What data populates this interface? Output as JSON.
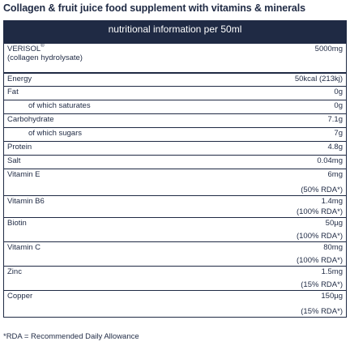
{
  "title": "Collagen & fruit juice food supplement with vitamins & minerals",
  "table": {
    "header": "nutritional information per 50ml",
    "rows": [
      {
        "label": "VERISOL",
        "label_sup": "®",
        "sublabel": "(collagen hydrolysate)",
        "value": "5000mg"
      },
      {
        "label": "Energy",
        "value": "50kcal (213kj)"
      },
      {
        "label": "Fat",
        "value": "0g"
      },
      {
        "label": "of which saturates",
        "value": "0g"
      },
      {
        "label": "Carbohydrate",
        "value": "7.1g"
      },
      {
        "label": "of which sugars",
        "value": "7g"
      },
      {
        "label": "Protein",
        "value": "4.8g"
      },
      {
        "label": "Salt",
        "value": "0.04mg"
      },
      {
        "label": "Vitamin E",
        "value": "6mg",
        "rda": "(50% RDA*)"
      },
      {
        "label": "Vitamin B6",
        "value": "1.4mg",
        "rda": "(100% RDA*)"
      },
      {
        "label": "Biotin",
        "value": "50µg",
        "rda": "(100% RDA*)"
      },
      {
        "label": "Vitamin C",
        "value": "80mg",
        "rda": "(100% RDA*)"
      },
      {
        "label": "Zinc",
        "value": "1.5mg",
        "rda": "(15% RDA*)"
      },
      {
        "label": "Copper",
        "value": "150µg",
        "rda": "(15% RDA*)"
      }
    ]
  },
  "footnote": "*RDA = Recommended Daily Allowance",
  "colors": {
    "navy": "#1f2a44",
    "header_text": "#ffffff"
  }
}
